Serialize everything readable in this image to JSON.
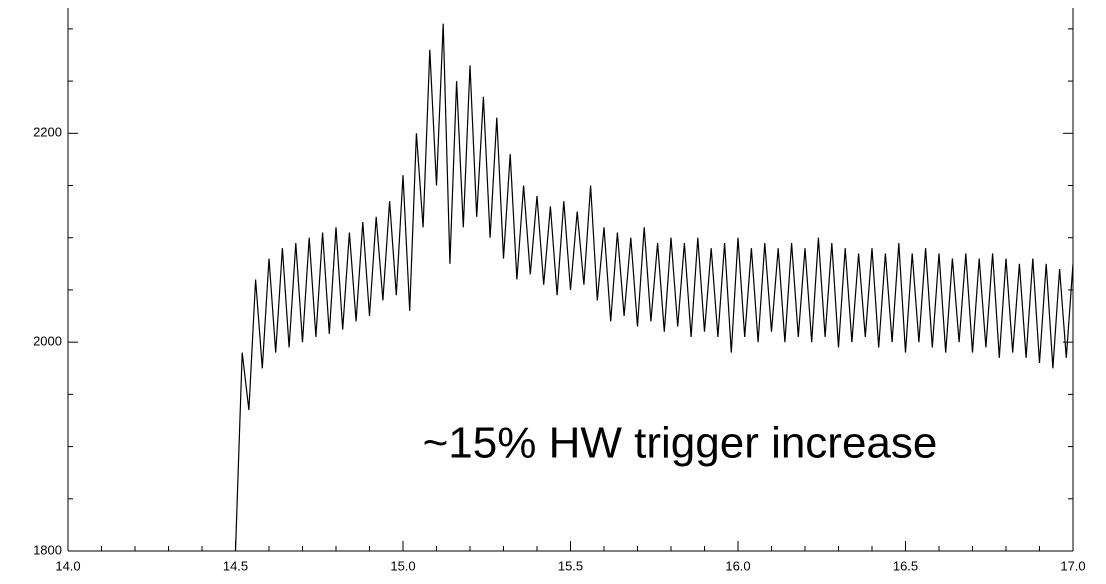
{
  "chart_data": {
    "type": "line",
    "annotation": "~15% HW trigger increase",
    "color": "#000000",
    "xlim": [
      14.0,
      17.0
    ],
    "ylim": [
      1800,
      2320
    ],
    "xticks": [
      {
        "value": 14.0,
        "label": "14.0"
      },
      14.5,
      {
        "value": 15.0,
        "label": "15.0"
      },
      15.5,
      {
        "value": 16.0,
        "label": "16.0"
      },
      16.5,
      {
        "value": 17.0,
        "label": "17.0"
      }
    ],
    "yticks": [
      1800,
      2000,
      2200
    ],
    "x": [
      14.5,
      14.52,
      14.54,
      14.56,
      14.58,
      14.6,
      14.62,
      14.64,
      14.66,
      14.68,
      14.7,
      14.72,
      14.74,
      14.76,
      14.78,
      14.8,
      14.82,
      14.84,
      14.86,
      14.88,
      14.9,
      14.92,
      14.94,
      14.96,
      14.98,
      15.0,
      15.02,
      15.04,
      15.06,
      15.08,
      15.1,
      15.12,
      15.14,
      15.16,
      15.18,
      15.2,
      15.22,
      15.24,
      15.26,
      15.28,
      15.3,
      15.32,
      15.34,
      15.36,
      15.38,
      15.4,
      15.42,
      15.44,
      15.46,
      15.48,
      15.5,
      15.52,
      15.54,
      15.56,
      15.58,
      15.6,
      15.62,
      15.64,
      15.66,
      15.68,
      15.7,
      15.72,
      15.74,
      15.76,
      15.78,
      15.8,
      15.82,
      15.84,
      15.86,
      15.88,
      15.9,
      15.92,
      15.94,
      15.96,
      15.98,
      16.0,
      16.02,
      16.04,
      16.06,
      16.08,
      16.1,
      16.12,
      16.14,
      16.16,
      16.18,
      16.2,
      16.22,
      16.24,
      16.26,
      16.28,
      16.3,
      16.32,
      16.34,
      16.36,
      16.38,
      16.4,
      16.42,
      16.44,
      16.46,
      16.48,
      16.5,
      16.52,
      16.54,
      16.56,
      16.58,
      16.6,
      16.62,
      16.64,
      16.66,
      16.68,
      16.7,
      16.72,
      16.74,
      16.76,
      16.78,
      16.8,
      16.82,
      16.84,
      16.86,
      16.88,
      16.9,
      16.92,
      16.94,
      16.96,
      16.98,
      17.0
    ],
    "values": [
      1800,
      1990,
      1935,
      2060,
      1975,
      2080,
      1990,
      2090,
      1995,
      2095,
      2000,
      2100,
      2005,
      2105,
      2008,
      2110,
      2012,
      2105,
      2020,
      2115,
      2025,
      2120,
      2040,
      2135,
      2045,
      2160,
      2030,
      2200,
      2110,
      2280,
      2150,
      2305,
      2075,
      2250,
      2110,
      2265,
      2120,
      2235,
      2100,
      2215,
      2080,
      2180,
      2060,
      2150,
      2065,
      2140,
      2055,
      2130,
      2045,
      2135,
      2050,
      2125,
      2055,
      2150,
      2040,
      2110,
      2020,
      2105,
      2025,
      2100,
      2015,
      2110,
      2020,
      2095,
      2010,
      2100,
      2015,
      2095,
      2005,
      2100,
      2010,
      2090,
      2005,
      2095,
      1990,
      2100,
      2005,
      2090,
      2000,
      2095,
      2010,
      2090,
      2000,
      2095,
      2005,
      2090,
      2000,
      2100,
      2005,
      2095,
      1995,
      2090,
      2000,
      2085,
      2005,
      2090,
      1995,
      2085,
      2000,
      2095,
      1990,
      2085,
      2000,
      2090,
      1995,
      2085,
      1990,
      2080,
      2000,
      2085,
      1990,
      2080,
      1995,
      2085,
      1985,
      2080,
      1990,
      2075,
      1985,
      2080,
      1980,
      2075,
      1975,
      2070,
      1985,
      2075
    ]
  }
}
